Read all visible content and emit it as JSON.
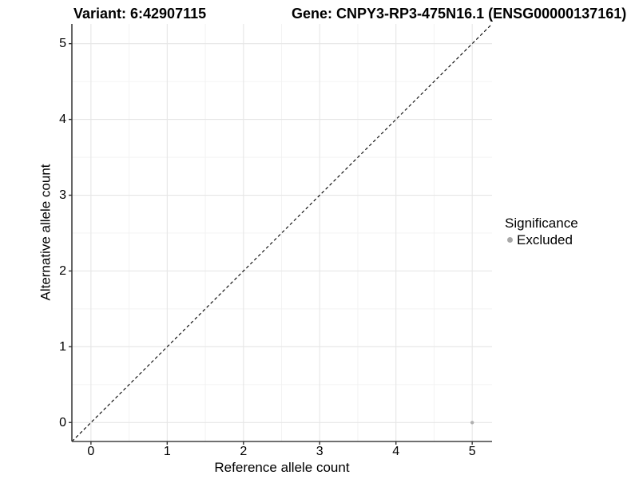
{
  "header": {
    "variant_title": "Variant: 6:42907115",
    "gene_title": "Gene: CNPY3-RP3-475N16.1 (ENSG00000137161)"
  },
  "chart_data": {
    "type": "scatter",
    "title_left": "Variant: 6:42907115",
    "title_right": "Gene: CNPY3-RP3-475N16.1 (ENSG00000137161)",
    "xlabel": "Reference allele count",
    "ylabel": "Alternative allele count",
    "xlim": [
      -0.25,
      5.26
    ],
    "ylim": [
      -0.25,
      5.26
    ],
    "xticks": [
      0,
      1,
      2,
      3,
      4,
      5
    ],
    "yticks": [
      0,
      1,
      2,
      3,
      4,
      5
    ],
    "minor_gridlines_x": [
      0.5,
      1.5,
      2.5,
      3.5,
      4.5
    ],
    "minor_gridlines_y": [
      0.5,
      1.5,
      2.5,
      3.5,
      4.5
    ],
    "grid": "on",
    "reference_line": {
      "type": "identity y=x",
      "style": "dashed",
      "color": "#000000"
    },
    "series": [
      {
        "name": "Excluded",
        "color": "#b0b0b0",
        "points": [
          {
            "x": 5,
            "y": 0
          }
        ]
      }
    ],
    "legend": {
      "title": "Significance",
      "position": "right",
      "items": [
        {
          "label": "Excluded",
          "color": "#a8a8a8"
        }
      ]
    }
  },
  "colors": {
    "background": "#ffffff",
    "grid_major": "#e6e6e6",
    "grid_minor": "#f2f2f2",
    "axis_line": "#404040",
    "tick_mark": "#333333",
    "text": "#000000",
    "point": "#b0b0b0",
    "legend_dot": "#a8a8a8"
  }
}
